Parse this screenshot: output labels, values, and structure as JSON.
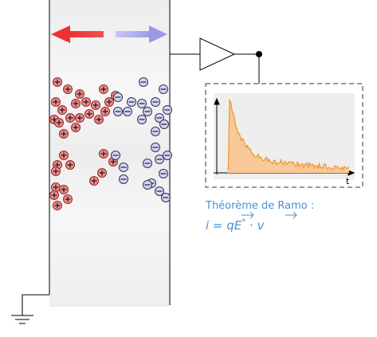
{
  "plot": {
    "axis_label": "t"
  },
  "caption": {
    "title": "Théorème de Ramo :",
    "formula": {
      "lhs": "i = q",
      "field": "E",
      "star": "*",
      "dot": " · ",
      "velocity": "v"
    }
  }
}
